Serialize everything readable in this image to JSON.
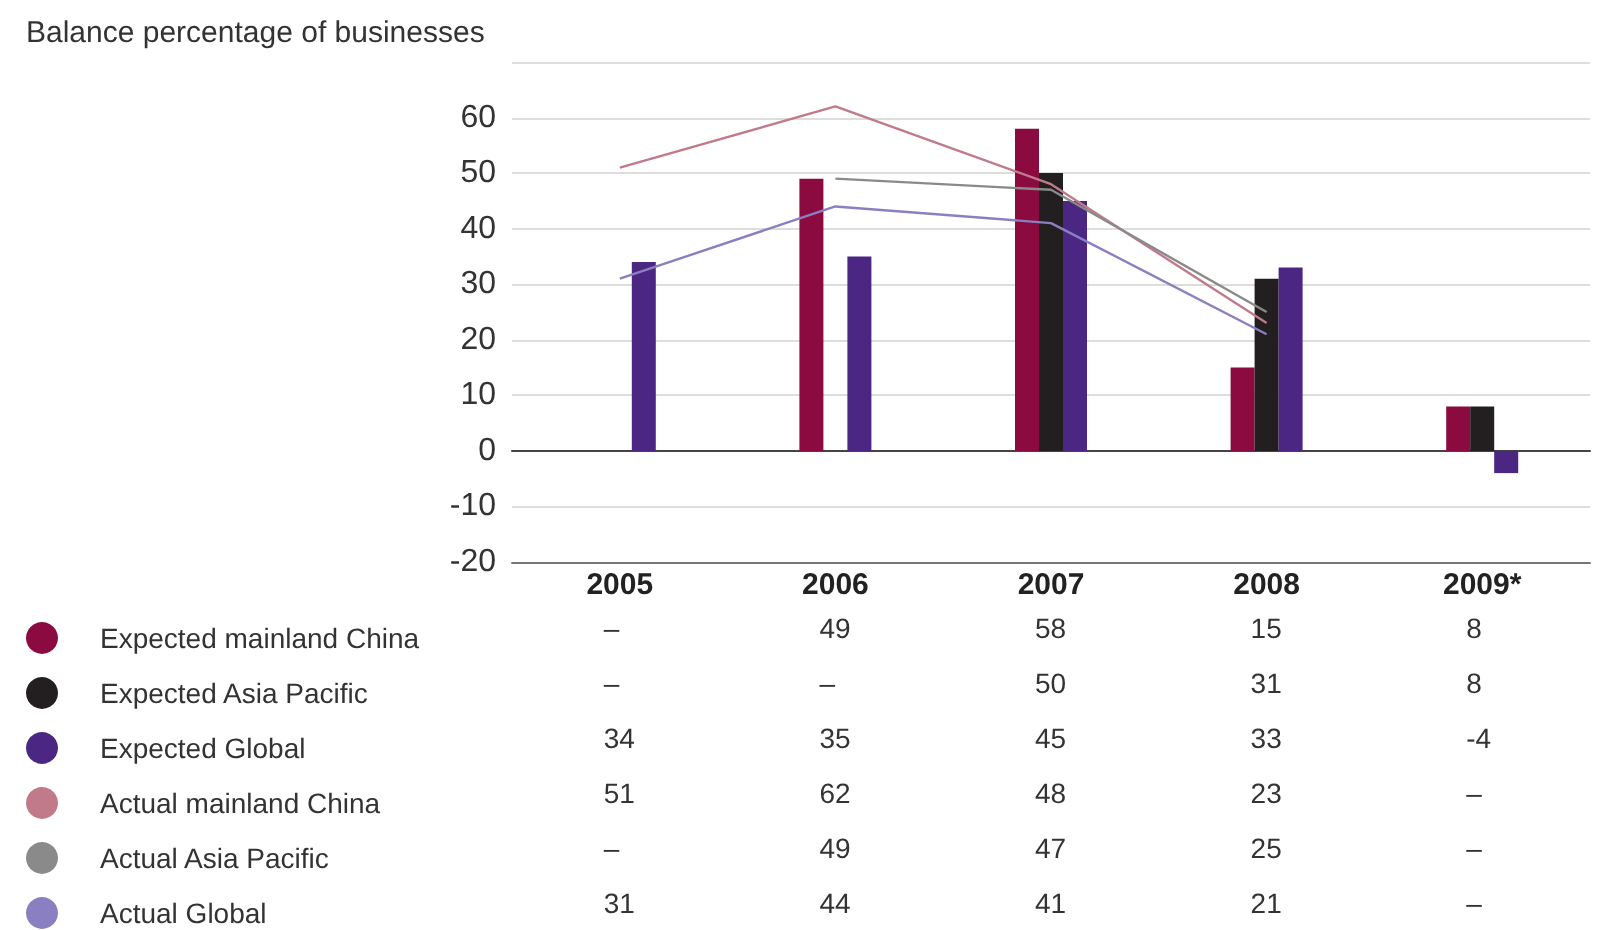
{
  "chart_data": {
    "type": "bar",
    "subtitle": "Balance percentage of businesses",
    "categories": [
      "2005",
      "2006",
      "2007",
      "2008",
      "2009*"
    ],
    "ylim": [
      -20,
      70
    ],
    "yticks": [
      -20,
      -10,
      0,
      10,
      20,
      30,
      40,
      50,
      60,
      {
        "value": 70,
        "label": null
      }
    ],
    "grid": "y",
    "legend": "bottom",
    "marker": "none",
    "series": [
      {
        "name": "Expected mainland China",
        "color": "#8b0a3f",
        "values": [
          null,
          49,
          58,
          15,
          8
        ],
        "value_labels": [
          "–",
          "49",
          "58",
          "15",
          "8"
        ]
      },
      {
        "name": "Expected Asia Pacific",
        "color": "#231f20",
        "values": [
          null,
          null,
          50,
          31,
          8
        ],
        "value_labels": [
          "–",
          "–",
          "50",
          "31",
          "8"
        ]
      },
      {
        "name": "Expected Global",
        "color": "#4b2683",
        "values": [
          34,
          35,
          45,
          33,
          -4
        ],
        "value_labels": [
          "34",
          "35",
          "45",
          "33",
          "-4"
        ]
      },
      {
        "name": "Actual mainland China",
        "type": "line",
        "color": "#c07a8a",
        "values": [
          51,
          62,
          48,
          23,
          null
        ],
        "value_labels": [
          "51",
          "62",
          "48",
          "23",
          "–"
        ]
      },
      {
        "name": "Actual Asia Pacific",
        "type": "line",
        "color": "#8a8a8a",
        "values": [
          null,
          49,
          47,
          25,
          null
        ],
        "value_labels": [
          "–",
          "49",
          "47",
          "25",
          "–"
        ]
      },
      {
        "name": "Actual Global",
        "type": "line",
        "color": "#8a7fc0",
        "values": [
          31,
          44,
          41,
          21,
          null
        ],
        "value_labels": [
          "31",
          "44",
          "41",
          "21",
          "–"
        ]
      }
    ]
  }
}
